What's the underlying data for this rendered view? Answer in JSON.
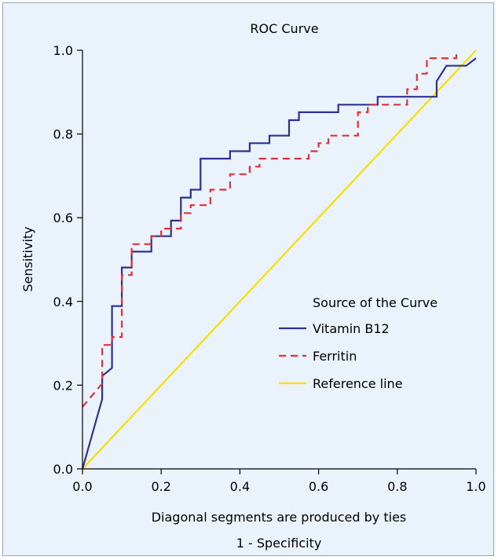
{
  "chart_data": {
    "type": "line",
    "title": "ROC Curve",
    "xlabel": "1 - Specificity",
    "ylabel": "Sensitivity",
    "note": "Diagonal segments are produced by ties",
    "xlim": [
      0,
      1
    ],
    "ylim": [
      0,
      1
    ],
    "xticks": [
      "0.0",
      "0.2",
      "0.4",
      "0.6",
      "0.8",
      "1.0"
    ],
    "yticks": [
      "0.0",
      "0.2",
      "0.4",
      "0.6",
      "0.8",
      "1.0"
    ],
    "legend": {
      "title": "Source of the Curve",
      "placement": "center-right"
    },
    "series": [
      {
        "name": "Vitamin B12",
        "color": "#2e3192",
        "style": "solid",
        "points": [
          [
            0.0,
            0.0
          ],
          [
            0.05,
            0.167
          ],
          [
            0.05,
            0.222
          ],
          [
            0.075,
            0.241
          ],
          [
            0.075,
            0.389
          ],
          [
            0.1,
            0.389
          ],
          [
            0.1,
            0.481
          ],
          [
            0.125,
            0.481
          ],
          [
            0.125,
            0.519
          ],
          [
            0.175,
            0.519
          ],
          [
            0.175,
            0.556
          ],
          [
            0.225,
            0.556
          ],
          [
            0.225,
            0.593
          ],
          [
            0.25,
            0.593
          ],
          [
            0.25,
            0.648
          ],
          [
            0.275,
            0.648
          ],
          [
            0.275,
            0.667
          ],
          [
            0.3,
            0.667
          ],
          [
            0.3,
            0.741
          ],
          [
            0.375,
            0.741
          ],
          [
            0.375,
            0.759
          ],
          [
            0.425,
            0.759
          ],
          [
            0.425,
            0.778
          ],
          [
            0.475,
            0.778
          ],
          [
            0.475,
            0.796
          ],
          [
            0.525,
            0.796
          ],
          [
            0.525,
            0.833
          ],
          [
            0.55,
            0.833
          ],
          [
            0.55,
            0.852
          ],
          [
            0.65,
            0.852
          ],
          [
            0.65,
            0.87
          ],
          [
            0.75,
            0.87
          ],
          [
            0.75,
            0.889
          ],
          [
            0.9,
            0.889
          ],
          [
            0.9,
            0.926
          ],
          [
            0.925,
            0.963
          ],
          [
            0.975,
            0.963
          ],
          [
            1.0,
            0.981
          ]
        ]
      },
      {
        "name": "Ferritin",
        "color": "#e0303a",
        "style": "dashed",
        "points": [
          [
            0.0,
            0.148
          ],
          [
            0.05,
            0.204
          ],
          [
            0.05,
            0.296
          ],
          [
            0.075,
            0.296
          ],
          [
            0.075,
            0.315
          ],
          [
            0.1,
            0.315
          ],
          [
            0.1,
            0.463
          ],
          [
            0.125,
            0.463
          ],
          [
            0.125,
            0.537
          ],
          [
            0.175,
            0.537
          ],
          [
            0.175,
            0.556
          ],
          [
            0.2,
            0.556
          ],
          [
            0.2,
            0.574
          ],
          [
            0.25,
            0.574
          ],
          [
            0.25,
            0.611
          ],
          [
            0.275,
            0.611
          ],
          [
            0.275,
            0.63
          ],
          [
            0.325,
            0.63
          ],
          [
            0.325,
            0.667
          ],
          [
            0.375,
            0.667
          ],
          [
            0.375,
            0.704
          ],
          [
            0.425,
            0.704
          ],
          [
            0.425,
            0.722
          ],
          [
            0.45,
            0.722
          ],
          [
            0.45,
            0.741
          ],
          [
            0.575,
            0.741
          ],
          [
            0.575,
            0.759
          ],
          [
            0.6,
            0.759
          ],
          [
            0.6,
            0.778
          ],
          [
            0.625,
            0.778
          ],
          [
            0.625,
            0.796
          ],
          [
            0.7,
            0.796
          ],
          [
            0.7,
            0.852
          ],
          [
            0.725,
            0.852
          ],
          [
            0.725,
            0.87
          ],
          [
            0.825,
            0.87
          ],
          [
            0.825,
            0.907
          ],
          [
            0.85,
            0.907
          ],
          [
            0.85,
            0.944
          ],
          [
            0.875,
            0.944
          ],
          [
            0.875,
            0.981
          ],
          [
            0.95,
            0.981
          ],
          [
            0.95,
            1.0
          ]
        ]
      },
      {
        "name": "Reference line",
        "color": "#f5e000",
        "style": "solid",
        "points": [
          [
            0.0,
            0.0
          ],
          [
            1.0,
            1.0
          ]
        ]
      }
    ]
  }
}
